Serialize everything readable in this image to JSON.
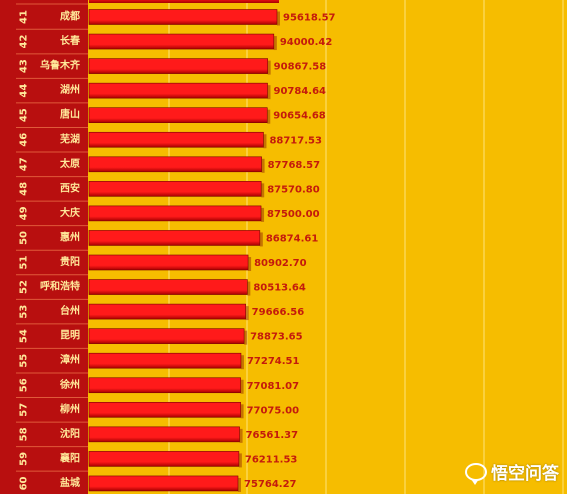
{
  "chart_data": {
    "type": "bar",
    "orientation": "horizontal",
    "grid": true,
    "ranks": [
      "41",
      "42",
      "43",
      "44",
      "45",
      "46",
      "47",
      "48",
      "49",
      "50",
      "51",
      "52",
      "53",
      "54",
      "55",
      "56",
      "57",
      "58",
      "59",
      "60"
    ],
    "categories": [
      "成都",
      "长春",
      "乌鲁木齐",
      "湖州",
      "唐山",
      "芜湖",
      "太原",
      "西安",
      "大庆",
      "惠州",
      "贵阳",
      "呼和浩特",
      "台州",
      "昆明",
      "漳州",
      "徐州",
      "柳州",
      "沈阳",
      "襄阳",
      "盐城"
    ],
    "values": [
      95618.57,
      94000.42,
      90867.58,
      90784.64,
      90654.68,
      88717.53,
      87768.57,
      87570.8,
      87500.0,
      86874.61,
      80902.7,
      80513.64,
      79666.56,
      78873.65,
      77274.51,
      77081.07,
      77075.0,
      76561.37,
      76211.53,
      75764.27
    ],
    "value_labels": [
      "95618.57",
      "94000.42",
      "90867.58",
      "90784.64",
      "90654.68",
      "88717.53",
      "87768.57",
      "87570.80",
      "87500.00",
      "86874.61",
      "80902.70",
      "80513.64",
      "79666.56",
      "78873.65",
      "77274.51",
      "77081.07",
      "77075.00",
      "76561.37",
      "76211.53",
      "75764.27"
    ],
    "colors": {
      "background": "#f6bd00",
      "label_panel": "#b80f0f",
      "bar": "#ff1a1a",
      "bar_dark": "#a60000",
      "value_text": "#c41a0c",
      "label_text": "#ffe89a",
      "grid": "#ffe27a"
    }
  },
  "watermark": {
    "text": "悟空问答",
    "icon": "speech-bubble-icon"
  }
}
